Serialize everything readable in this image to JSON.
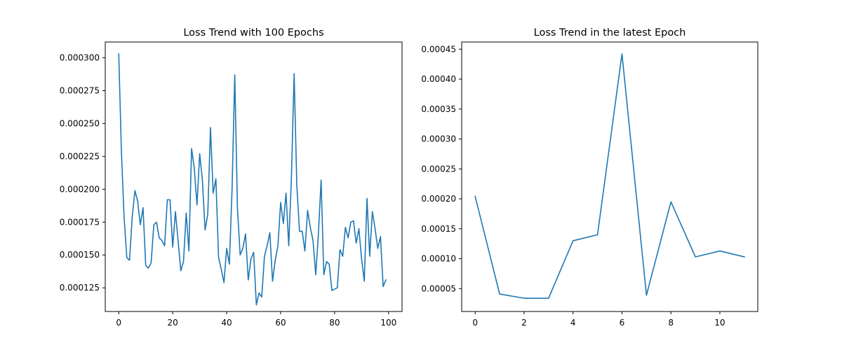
{
  "chart_data": [
    {
      "type": "line",
      "title": "Loss Trend with 100 Epochs",
      "xlabel": "",
      "ylabel": "",
      "xlim": [
        -5,
        105
      ],
      "ylim": [
        0.000107,
        0.000312
      ],
      "xticks": [
        0,
        20,
        40,
        60,
        80,
        100
      ],
      "xtick_labels": [
        "0",
        "20",
        "40",
        "60",
        "80",
        "100"
      ],
      "yticks": [
        0.000125,
        0.00015,
        0.000175,
        0.0002,
        0.000225,
        0.00025,
        0.000275,
        0.0003
      ],
      "ytick_labels": [
        "0.000125",
        "0.000150",
        "0.000175",
        "0.000200",
        "0.000225",
        "0.000250",
        "0.000275",
        "0.000300"
      ],
      "grid": false,
      "series": [
        {
          "color": "#1f77b4",
          "x": [
            0,
            1,
            2,
            3,
            4,
            5,
            6,
            7,
            8,
            9,
            10,
            11,
            12,
            13,
            14,
            15,
            16,
            17,
            18,
            19,
            20,
            21,
            22,
            23,
            24,
            25,
            26,
            27,
            28,
            29,
            30,
            31,
            32,
            33,
            34,
            35,
            36,
            37,
            38,
            39,
            40,
            41,
            42,
            43,
            44,
            45,
            46,
            47,
            48,
            49,
            50,
            51,
            52,
            53,
            54,
            55,
            56,
            57,
            58,
            59,
            60,
            61,
            62,
            63,
            64,
            65,
            66,
            67,
            68,
            69,
            70,
            71,
            72,
            73,
            74,
            75,
            76,
            77,
            78,
            79,
            80,
            81,
            82,
            83,
            84,
            85,
            86,
            87,
            88,
            89,
            90,
            91,
            92,
            93,
            94,
            95,
            96,
            97,
            98,
            99
          ],
          "values": [
            0.000303,
            0.000228,
            0.000178,
            0.000148,
            0.000146,
            0.000179,
            0.000199,
            0.000191,
            0.000173,
            0.000186,
            0.000142,
            0.00014,
            0.000144,
            0.000173,
            0.000175,
            0.000163,
            0.000161,
            0.000157,
            0.000192,
            0.000192,
            0.000156,
            0.000183,
            0.000161,
            0.000138,
            0.000145,
            0.000182,
            0.000153,
            0.000231,
            0.000216,
            0.000188,
            0.000227,
            0.000207,
            0.000169,
            0.000181,
            0.000247,
            0.000197,
            0.000208,
            0.000148,
            0.000139,
            0.000129,
            0.000155,
            0.000143,
            0.0002,
            0.000287,
            0.000185,
            0.00015,
            0.000155,
            0.000166,
            0.000131,
            0.000147,
            0.000152,
            0.000112,
            0.000121,
            0.000118,
            0.000149,
            0.000157,
            0.000167,
            0.00013,
            0.000146,
            0.000157,
            0.00019,
            0.000174,
            0.000197,
            0.000157,
            0.000209,
            0.000288,
            0.000203,
            0.000168,
            0.000168,
            0.000153,
            0.000184,
            0.000171,
            0.000161,
            0.000135,
            0.000166,
            0.000207,
            0.000135,
            0.000145,
            0.000143,
            0.000123,
            0.000124,
            0.000125,
            0.000154,
            0.000149,
            0.000171,
            0.000163,
            0.000175,
            0.000176,
            0.000159,
            0.00017,
            0.000147,
            0.00013,
            0.000193,
            0.000149,
            0.000183,
            0.00017,
            0.000155,
            0.000164,
            0.000126,
            0.000131
          ]
        }
      ]
    },
    {
      "type": "line",
      "title": "Loss Trend in the latest Epoch",
      "xlabel": "",
      "ylabel": "",
      "xlim": [
        -0.55,
        11.55
      ],
      "ylim": [
        1.18e-05,
        0.000462
      ],
      "xticks": [
        0,
        2,
        4,
        6,
        8,
        10
      ],
      "xtick_labels": [
        "0",
        "2",
        "4",
        "6",
        "8",
        "10"
      ],
      "yticks": [
        5e-05,
        0.0001,
        0.00015,
        0.0002,
        0.00025,
        0.0003,
        0.00035,
        0.0004,
        0.00045
      ],
      "ytick_labels": [
        "0.00005",
        "0.00010",
        "0.00015",
        "0.00020",
        "0.00025",
        "0.00030",
        "0.00035",
        "0.00040",
        "0.00045"
      ],
      "grid": false,
      "series": [
        {
          "color": "#1f77b4",
          "x": [
            0,
            1,
            2,
            3,
            4,
            5,
            6,
            7,
            8,
            9,
            10,
            11
          ],
          "values": [
            0.000204,
            4.1e-05,
            3.4e-05,
            3.4e-05,
            0.00013,
            0.00014,
            0.000442,
            3.9e-05,
            0.000195,
            0.000103,
            0.000113,
            0.000103
          ]
        }
      ]
    }
  ]
}
